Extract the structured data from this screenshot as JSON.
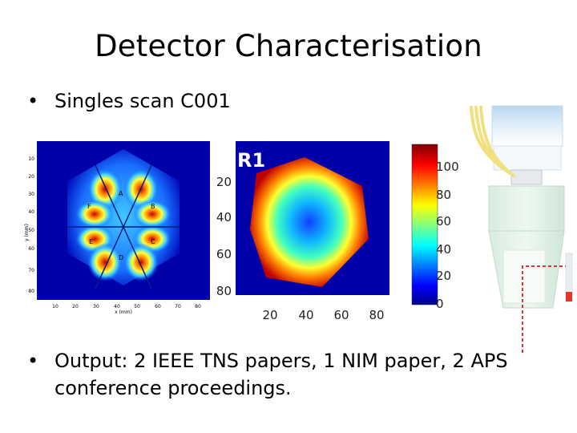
{
  "slide": {
    "title": "Detector Characterisation",
    "bullets": [
      {
        "marker": "•",
        "text": "Singles scan C001"
      },
      {
        "marker": "•",
        "line1": "Output: 2 IEEE TNS papers, 1 NIM paper, 2 APS",
        "line2": "conference proceedings."
      }
    ]
  },
  "fig_left": {
    "ylabel": "y (mm)",
    "xlabel": "x (mm)",
    "yticks": [
      "10",
      "20",
      "30",
      "40",
      "50",
      "60",
      "70",
      "80"
    ],
    "xticks": [
      "10",
      "20",
      "30",
      "40",
      "50",
      "60",
      "70",
      "80"
    ],
    "segments": [
      "A",
      "B",
      "C",
      "D",
      "E",
      "F"
    ]
  },
  "fig_mid": {
    "title": "R1",
    "yticks": [
      "20",
      "40",
      "60",
      "80"
    ],
    "xticks": [
      "20",
      "40",
      "60",
      "80"
    ]
  },
  "colorbar": {
    "ticks": [
      "100",
      "80",
      "60",
      "40",
      "20",
      "0"
    ]
  },
  "colors": {
    "bg_blue": "#0000a8",
    "accent_red": "#e1362e"
  }
}
